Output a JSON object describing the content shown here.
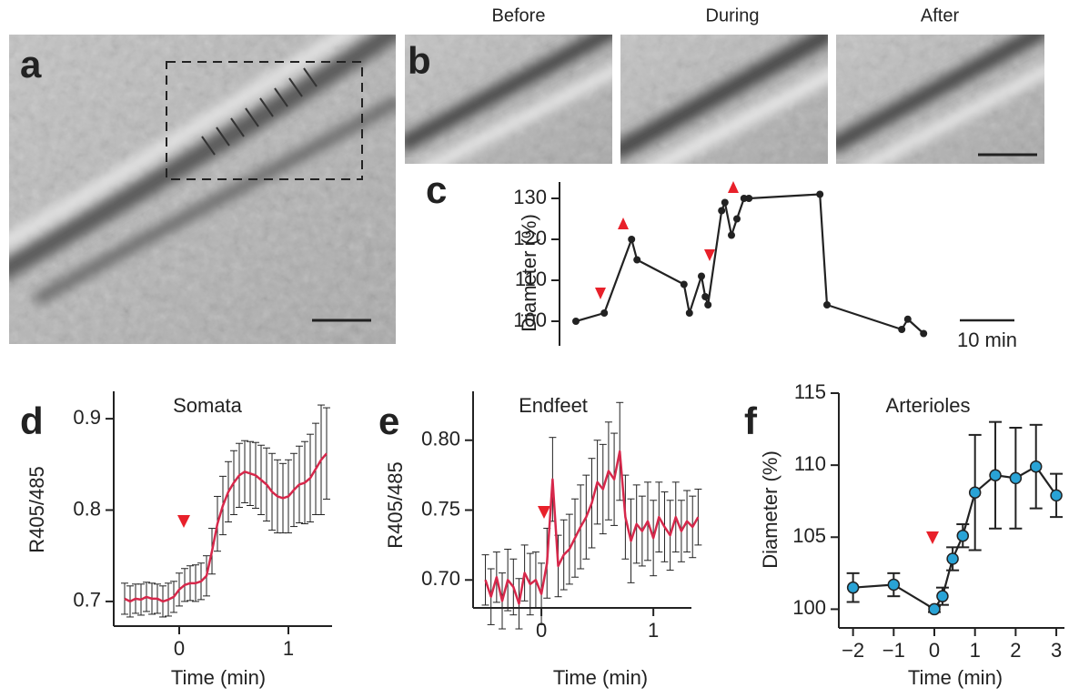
{
  "panels": [
    "a",
    "b",
    "c",
    "d",
    "e",
    "f"
  ],
  "images": {
    "captions": [
      "Before",
      "During",
      "After"
    ]
  },
  "chart_data": [
    {
      "type": "line",
      "ylabel": "Diameter (%)",
      "x": [
        0,
        5.2,
        10.2,
        11.2,
        19.8,
        20.8,
        23,
        23.7,
        24.2,
        26.7,
        27.3,
        28.5,
        29.5,
        30.8,
        31.7,
        44.7,
        46,
        59.7,
        60.8,
        63.7
      ],
      "values": [
        100,
        102,
        120,
        115,
        109,
        102,
        111,
        106,
        104,
        127,
        129,
        121,
        125,
        130,
        130,
        131,
        104,
        98,
        100.5,
        97
      ],
      "color": "#222222",
      "xlim": [
        -3,
        68
      ],
      "ylim": [
        94,
        134
      ],
      "yticks": [
        100,
        110,
        120,
        130
      ],
      "scale_bar": {
        "value": 10,
        "label": "10 min"
      }
    },
    {
      "type": "line",
      "title": "Somata",
      "xlabel": "Time (min)",
      "ylabel": "R405/485",
      "color": "#d6284b",
      "x": [
        -0.5,
        -0.45,
        -0.4,
        -0.35,
        -0.3,
        -0.25,
        -0.2,
        -0.15,
        -0.1,
        -0.05,
        0,
        0.05,
        0.1,
        0.15,
        0.2,
        0.25,
        0.3,
        0.35,
        0.4,
        0.45,
        0.5,
        0.55,
        0.6,
        0.65,
        0.7,
        0.75,
        0.8,
        0.85,
        0.9,
        0.95,
        1,
        1.05,
        1.1,
        1.15,
        1.2,
        1.25,
        1.3,
        1.35
      ],
      "values": [
        0.703,
        0.7,
        0.703,
        0.702,
        0.705,
        0.703,
        0.703,
        0.7,
        0.702,
        0.705,
        0.713,
        0.718,
        0.72,
        0.72,
        0.722,
        0.728,
        0.755,
        0.785,
        0.805,
        0.82,
        0.83,
        0.838,
        0.842,
        0.84,
        0.838,
        0.833,
        0.828,
        0.82,
        0.815,
        0.813,
        0.815,
        0.822,
        0.828,
        0.83,
        0.835,
        0.845,
        0.855,
        0.862
      ],
      "errors": [
        0.017,
        0.017,
        0.016,
        0.017,
        0.016,
        0.017,
        0.016,
        0.017,
        0.018,
        0.017,
        0.018,
        0.018,
        0.019,
        0.02,
        0.02,
        0.022,
        0.025,
        0.03,
        0.032,
        0.033,
        0.035,
        0.035,
        0.034,
        0.035,
        0.036,
        0.038,
        0.04,
        0.042,
        0.04,
        0.038,
        0.04,
        0.04,
        0.042,
        0.045,
        0.048,
        0.05,
        0.06,
        0.05
      ],
      "xlim": [
        -0.6,
        1.4
      ],
      "xticks": [
        0,
        1
      ],
      "ylim": [
        0.673,
        0.93
      ],
      "yticks": [
        0.7,
        0.8,
        0.9
      ]
    },
    {
      "type": "line",
      "title": "Endfeet",
      "xlabel": "Time (min)",
      "ylabel": "R405/485",
      "color": "#d6284b",
      "x": [
        -0.5,
        -0.45,
        -0.4,
        -0.35,
        -0.3,
        -0.25,
        -0.2,
        -0.15,
        -0.1,
        -0.05,
        0,
        0.05,
        0.1,
        0.15,
        0.2,
        0.25,
        0.3,
        0.35,
        0.4,
        0.45,
        0.5,
        0.55,
        0.6,
        0.65,
        0.7,
        0.75,
        0.8,
        0.85,
        0.9,
        0.95,
        1,
        1.05,
        1.1,
        1.15,
        1.2,
        1.25,
        1.3,
        1.35,
        1.4
      ],
      "values": [
        0.7,
        0.688,
        0.702,
        0.685,
        0.7,
        0.695,
        0.683,
        0.705,
        0.697,
        0.7,
        0.69,
        0.712,
        0.772,
        0.71,
        0.718,
        0.722,
        0.73,
        0.738,
        0.745,
        0.755,
        0.77,
        0.765,
        0.778,
        0.772,
        0.792,
        0.745,
        0.728,
        0.74,
        0.735,
        0.742,
        0.73,
        0.745,
        0.738,
        0.732,
        0.745,
        0.735,
        0.742,
        0.738,
        0.745
      ],
      "errors": [
        0.018,
        0.02,
        0.018,
        0.02,
        0.022,
        0.02,
        0.018,
        0.02,
        0.022,
        0.02,
        0.022,
        0.025,
        0.03,
        0.022,
        0.025,
        0.025,
        0.028,
        0.03,
        0.03,
        0.032,
        0.03,
        0.032,
        0.035,
        0.033,
        0.035,
        0.03,
        0.03,
        0.028,
        0.025,
        0.028,
        0.027,
        0.025,
        0.025,
        0.025,
        0.025,
        0.022,
        0.022,
        0.022,
        0.02
      ],
      "xlim": [
        -0.61,
        1.34
      ],
      "xticks": [
        0,
        1
      ],
      "ylim": [
        0.68,
        0.835
      ],
      "yticks": [
        {
          "value": 0.7,
          "label": "0.70"
        },
        {
          "value": 0.75,
          "label": "0.75"
        },
        {
          "value": 0.8,
          "label": "0.80"
        }
      ]
    },
    {
      "type": "line",
      "title": "Arterioles",
      "xlabel": "Time (min)",
      "ylabel": "Diameter (%)",
      "color": "#222222",
      "marker_color": "#29a3d6",
      "x": [
        -2,
        -1,
        0,
        0.2,
        0.45,
        0.7,
        1,
        1.5,
        2,
        2.5,
        3
      ],
      "values": [
        101.5,
        101.7,
        100,
        100.9,
        103.5,
        105.1,
        108.1,
        109.3,
        109.1,
        109.9,
        107.9
      ],
      "errors": [
        1,
        0.8,
        0.2,
        0.6,
        0.8,
        0.8,
        4,
        3.7,
        3.5,
        2.9,
        1.5
      ],
      "xlim": [
        -2.35,
        3.2
      ],
      "xticks": [
        {
          "value": -2,
          "label": "−2"
        },
        {
          "value": -1,
          "label": "−1"
        },
        0,
        1,
        2,
        3
      ],
      "ylim": [
        98.7,
        115
      ],
      "yticks": [
        100,
        105,
        110,
        115
      ]
    }
  ]
}
